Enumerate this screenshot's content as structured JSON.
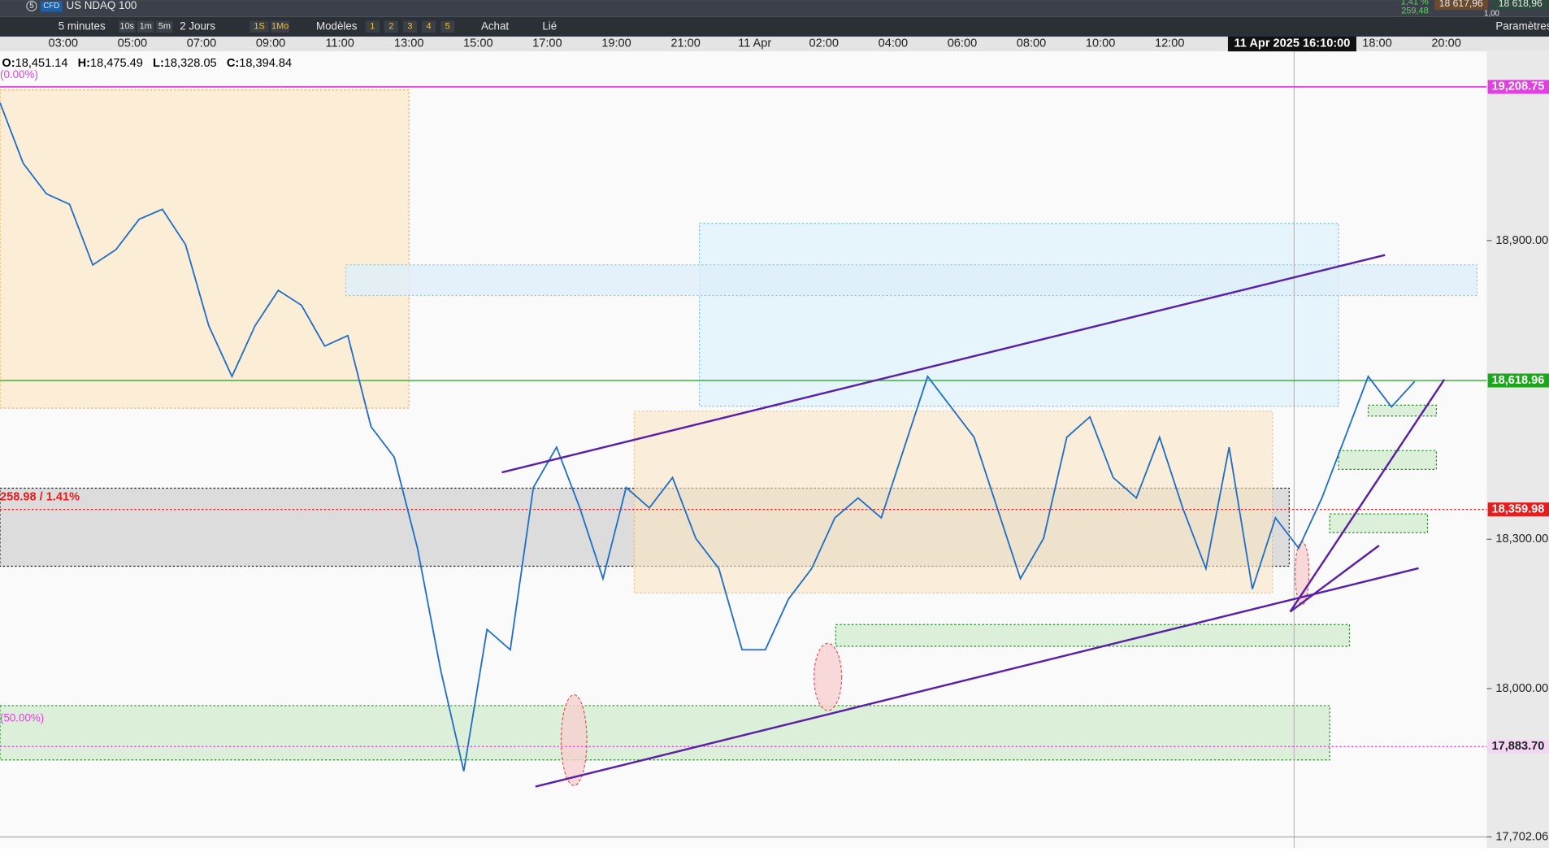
{
  "top_bar": {
    "badge": "5",
    "instrument_type": "CFD",
    "instrument": "US NDAQ 100",
    "change_pct": "1,41 %",
    "change_pts": "259,48",
    "bid": "18 617,96",
    "ask": "18 618,96",
    "spread": "1,00"
  },
  "toolbar": {
    "interval": "5 minutes",
    "quick_intervals": [
      "10s",
      "1m",
      "5m"
    ],
    "range": "2 Jours",
    "quick_ranges": [
      "1S",
      "1Mo"
    ],
    "templates": "Modèles",
    "slots": [
      "1",
      "2",
      "3",
      "4",
      "5"
    ],
    "buy": "Achat",
    "linked": "Lié",
    "settings": "Paramètres"
  },
  "chart": {
    "ohlc": {
      "o_label": "O:",
      "o": "18,451.14",
      "h_label": "H:",
      "h": "18,475.49",
      "l_label": "L:",
      "l": "18,328.05",
      "c_label": "C:",
      "c": "18,394.84"
    },
    "fib_top": "(0.00%)",
    "fib_mid": "(50.00%)",
    "change_label": "258.98 / 1.41%",
    "crosshair_time": "11 Apr 2025 16:10:00",
    "time_labels": [
      "03:00",
      "05:00",
      "07:00",
      "09:00",
      "11:00",
      "13:00",
      "15:00",
      "17:00",
      "19:00",
      "21:00",
      "11 Apr",
      "02:00",
      "04:00",
      "06:00",
      "08:00",
      "10:00",
      "12:00",
      null,
      null,
      "18:00",
      "20:00"
    ],
    "ylim": [
      17680,
      19280
    ],
    "yticks": [
      {
        "value": 18900,
        "label": "18,900.00"
      },
      {
        "value": 18300,
        "label": "18,300.00"
      },
      {
        "value": 18000,
        "label": "18,000.00"
      },
      {
        "value": 17702.06,
        "label": "17,702.06"
      }
    ],
    "price_lines": [
      {
        "value": 19208.75,
        "label": "19,208.75",
        "color": "#e040e0"
      },
      {
        "value": 18618.96,
        "label": "18,618.96",
        "color": "#1aa81a"
      },
      {
        "value": 18359.98,
        "label": "18,359.98",
        "color": "#e81c1c"
      },
      {
        "value": 17883.7,
        "label": "17,883.70",
        "color": "#e040e0"
      }
    ],
    "series": {
      "name": "US NDAQ 100",
      "color": "#1f6fc8",
      "values": [
        19177,
        19055,
        18994,
        18973,
        18851,
        18882,
        18943,
        18963,
        18892,
        18729,
        18627,
        18729,
        18800,
        18770,
        18688,
        18709,
        18526,
        18465,
        18282,
        18038,
        17834,
        18119,
        18078,
        18404,
        18485,
        18363,
        18221,
        18404,
        18363,
        18424,
        18302,
        18241,
        18078,
        18078,
        18180,
        18241,
        18343,
        18383,
        18343,
        18485,
        18627,
        18566,
        18505,
        18363,
        18221,
        18302,
        18505,
        18546,
        18424,
        18383,
        18505,
        18363,
        18241,
        18485,
        18200,
        18343,
        18282,
        18383,
        18505,
        18627,
        18566,
        18617
      ]
    }
  }
}
